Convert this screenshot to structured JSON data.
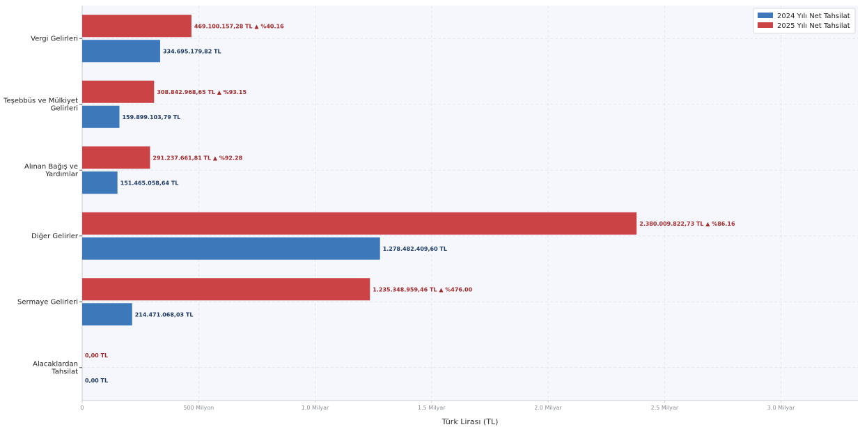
{
  "chart_data": {
    "type": "bar",
    "orientation": "horizontal",
    "categories": [
      "Vergi Gelirleri",
      "Teşebbüs ve Mülkiyet Gelirleri",
      "Alınan Bağış ve Yardımlar",
      "Diğer Gelirler",
      "Sermaye Gelirleri",
      "Alacaklardan Tahsilat"
    ],
    "category_lines": [
      [
        "Vergi Gelirleri"
      ],
      [
        "Teşebbüs ve Mülkiyet",
        "Gelirleri"
      ],
      [
        "Alınan Bağış ve",
        "Yardımlar"
      ],
      [
        "Diğer Gelirler"
      ],
      [
        "Sermaye Gelirleri"
      ],
      [
        "Alacaklardan",
        "Tahsilat"
      ]
    ],
    "series": [
      {
        "name": "2024 Yılı Net Tahsilat",
        "color": "#3d78bb",
        "values": [
          334695179.82,
          159899103.79,
          151465058.64,
          1278482409.6,
          214471068.03,
          0
        ],
        "labels": [
          "334.695.179,82 TL",
          "159.899.103,79 TL",
          "151.465.058,64 TL",
          "1.278.482.409,60 TL",
          "214.471.068,03 TL",
          "0,00 TL"
        ]
      },
      {
        "name": "2025 Yılı Net Tahsilat",
        "color": "#cc4346",
        "values": [
          469100157.28,
          308842968.65,
          291237661.81,
          2380009822.73,
          1235348959.46,
          0
        ],
        "labels": [
          "469.100.157,28 TL  ▲ %40.16",
          "308.842.968,65 TL  ▲ %93.15",
          "291.237.661,81 TL  ▲ %92.28",
          "2.380.009.822,73 TL  ▲ %86.16",
          "1.235.348.959,46 TL  ▲ %476.00",
          "0,00 TL"
        ]
      }
    ],
    "xlim": [
      0,
      3330000000
    ],
    "xticks": [
      0,
      500000000,
      1000000000,
      1500000000,
      2000000000,
      2500000000,
      3000000000
    ],
    "xtick_labels": [
      "0",
      "500 Milyon",
      "1.0 Milyar",
      "1.5 Milyar",
      "2.0 Milyar",
      "2.5 Milyar",
      "3.0 Milyar"
    ],
    "xlabel": "Türk Lirası (TL)",
    "ylabel": "",
    "title": "",
    "grid": true,
    "legend_position": "top-right"
  }
}
